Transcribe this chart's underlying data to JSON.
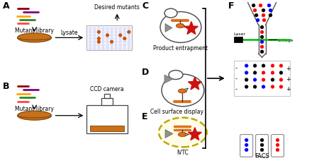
{
  "background": "#ffffff",
  "label_A": "A",
  "label_B": "B",
  "label_C": "C",
  "label_D": "D",
  "label_E": "E",
  "label_F": "F",
  "text_mutant_library": "Mutant library",
  "text_desired_mutants": "Desired mutants",
  "text_lysate": "Lysate",
  "text_ccd_camera": "CCD camera",
  "text_product_entrapment": "Product entrapment",
  "text_cell_surface_display": "Cell surface display",
  "text_ivtc": "IVTC",
  "text_facs": "FACS",
  "text_laser": "Laser",
  "text_voltage": "Voltage",
  "dna_colors": [
    "#8B0000",
    "#800080",
    "#FFA500",
    "#228B22",
    "#FF4444"
  ],
  "orange": "#E07020",
  "red_star": "#CC1111",
  "gray_tri": "#909090",
  "dish_face": "#C8701A",
  "dish_edge": "#8B5010"
}
